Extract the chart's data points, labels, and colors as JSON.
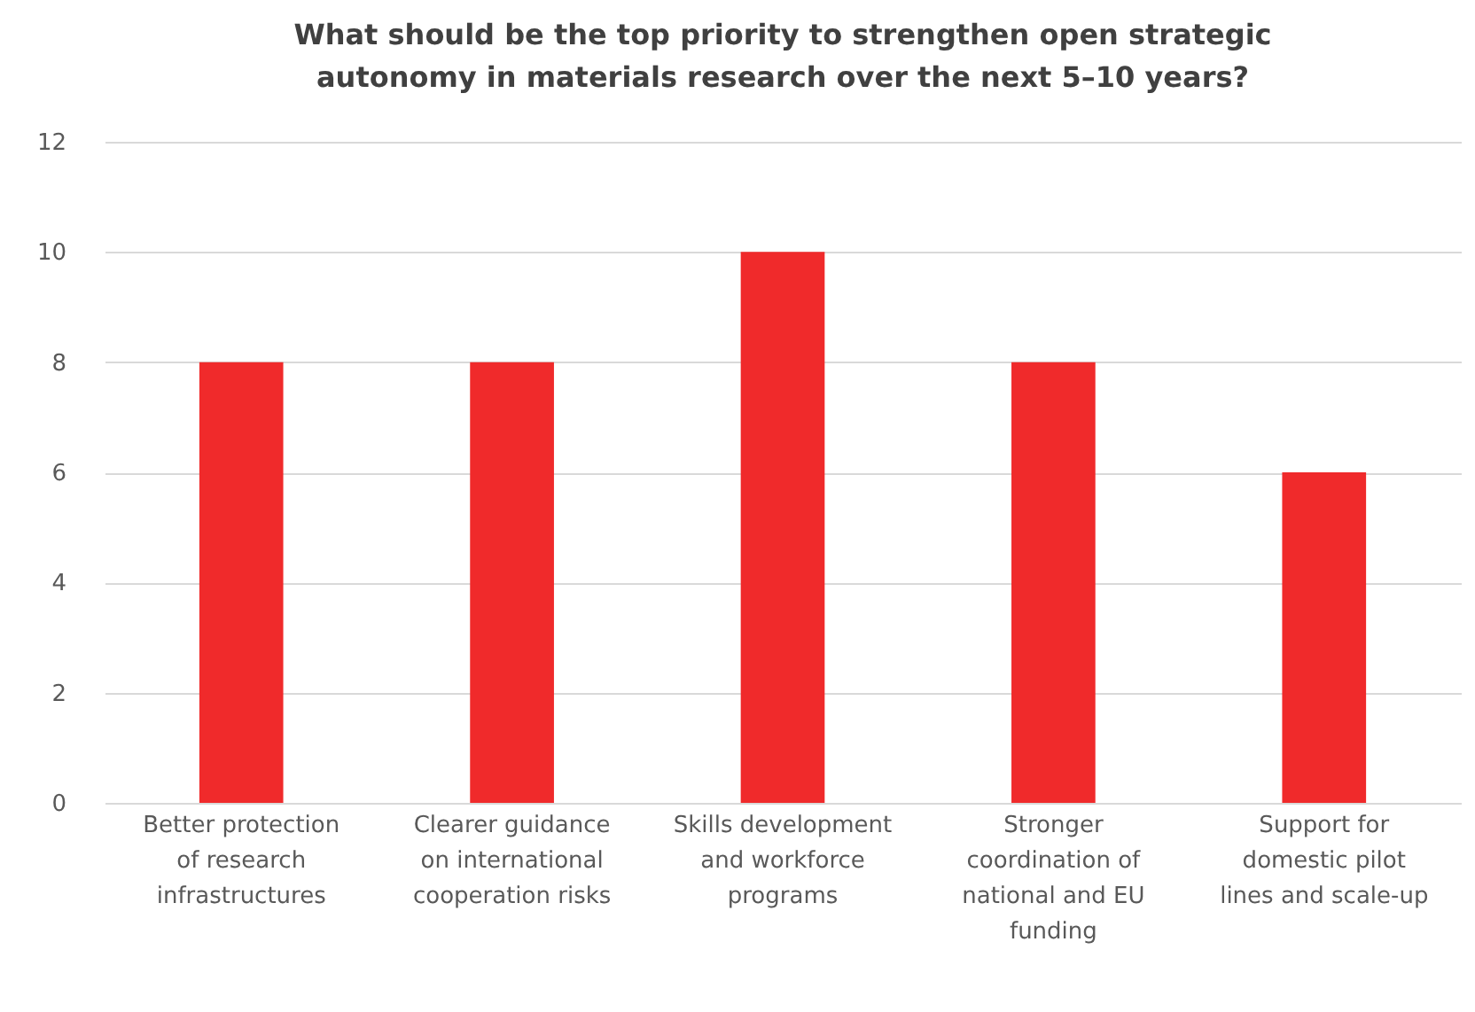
{
  "chart_data": {
    "type": "bar",
    "title": "What should be the top priority to strengthen open strategic\nautonomy in materials research over the next 5–10 years?",
    "categories": [
      "Better protection\nof research\ninfrastructures",
      "Clearer guidance\non international\ncooperation risks",
      "Skills development\nand workforce\nprograms",
      "Stronger\ncoordination of\nnational and EU\nfunding",
      "Support for\ndomestic pilot\nlines and scale-up"
    ],
    "values": [
      8,
      8,
      10,
      8,
      6
    ],
    "color": "#f02a2b",
    "ylim": [
      0,
      12
    ],
    "yticks": [
      0,
      2,
      4,
      6,
      8,
      10,
      12
    ],
    "grid": "y"
  }
}
